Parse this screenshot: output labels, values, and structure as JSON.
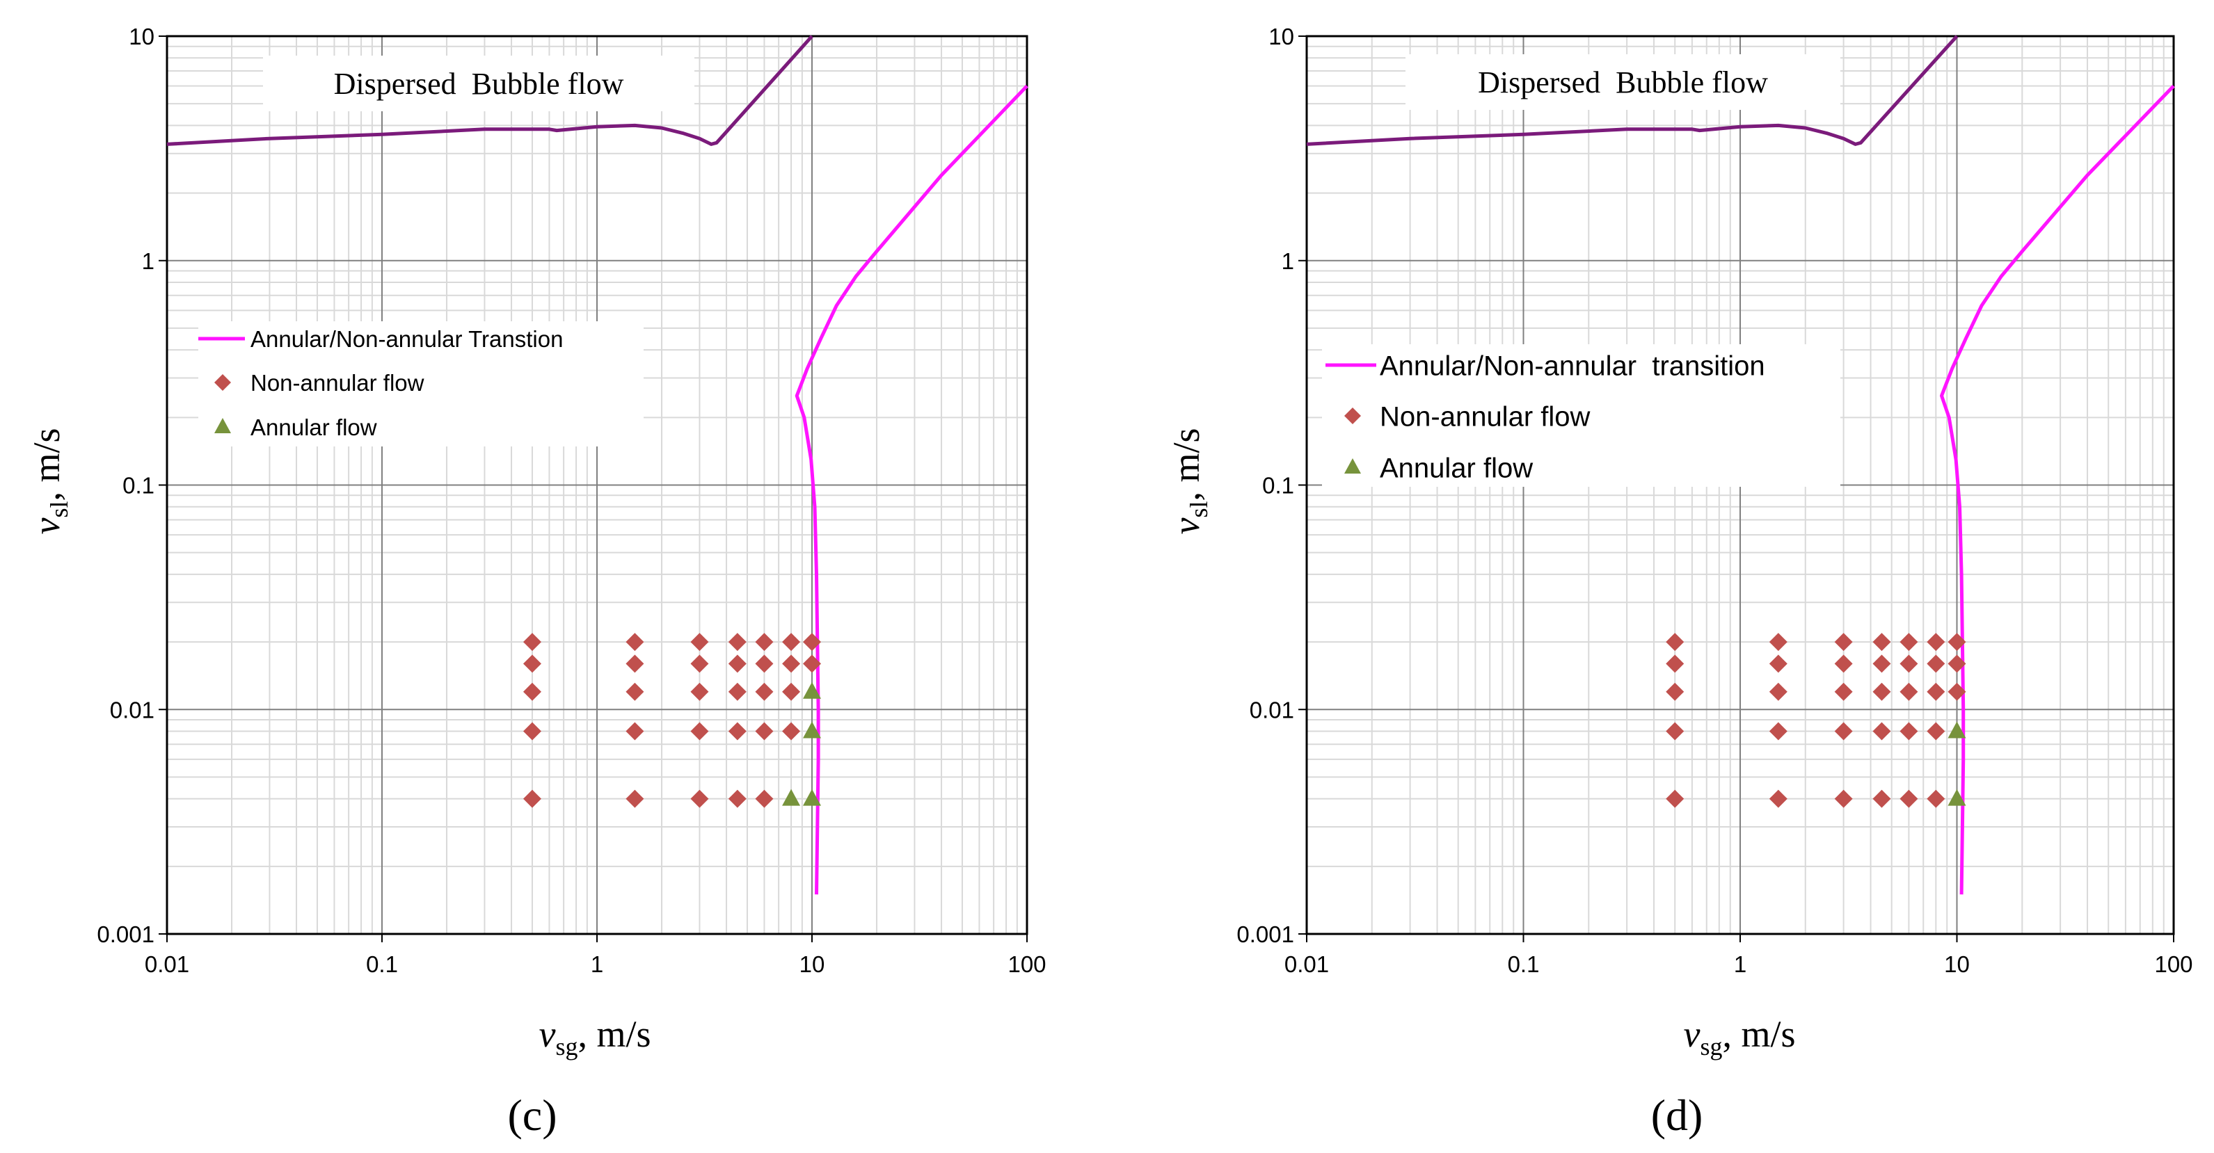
{
  "colors": {
    "transition_line": "#ff14ff",
    "bubble_line": "#7b1b7b",
    "nonannular_marker": "#c0504d",
    "annular_marker": "#77933c",
    "grid_minor": "#d9d9d9",
    "grid_major": "#808080"
  },
  "chart_data": [
    {
      "panel_label": "(c)",
      "type": "scatter",
      "scale": "log-log",
      "xlim": [
        0.01,
        100
      ],
      "ylim": [
        0.001,
        10
      ],
      "x_tick_labels": [
        "0.01",
        "0.1",
        "1",
        "10",
        "100"
      ],
      "y_tick_labels": [
        "0.001",
        "0.01",
        "0.1",
        "1",
        "10"
      ],
      "xlabel_var": "v",
      "xlabel_sub": "sg",
      "xlabel_unit": ", m/s",
      "ylabel_var": "v",
      "ylabel_sub": "sl",
      "ylabel_unit": ", m/s",
      "region_label": "Dispersed  Bubble flow",
      "legend": {
        "transition": "Annular/Non-annular Transtion",
        "nonannular": "Non-annular flow",
        "annular": "Annular flow"
      },
      "bubble_boundary": [
        [
          0.01,
          3.3
        ],
        [
          0.03,
          3.5
        ],
        [
          0.1,
          3.65
        ],
        [
          0.3,
          3.85
        ],
        [
          0.6,
          3.85
        ],
        [
          0.65,
          3.8
        ],
        [
          1.0,
          3.95
        ],
        [
          1.5,
          4.0
        ],
        [
          2.0,
          3.9
        ],
        [
          2.5,
          3.7
        ],
        [
          3.0,
          3.5
        ],
        [
          3.4,
          3.3
        ],
        [
          3.6,
          3.35
        ],
        [
          10.0,
          10.0
        ]
      ],
      "transition_curve": [
        [
          10.5,
          0.0015
        ],
        [
          10.6,
          0.003
        ],
        [
          10.7,
          0.006
        ],
        [
          10.7,
          0.01
        ],
        [
          10.6,
          0.02
        ],
        [
          10.5,
          0.04
        ],
        [
          10.3,
          0.08
        ],
        [
          9.9,
          0.13
        ],
        [
          9.2,
          0.2
        ],
        [
          8.5,
          0.25
        ],
        [
          9.5,
          0.33
        ],
        [
          11.0,
          0.45
        ],
        [
          13.0,
          0.63
        ],
        [
          16.0,
          0.85
        ],
        [
          20.0,
          1.1
        ],
        [
          40.0,
          2.4
        ],
        [
          100.0,
          6.0
        ]
      ],
      "nonannular_points": [
        [
          0.5,
          0.02
        ],
        [
          0.5,
          0.016
        ],
        [
          0.5,
          0.012
        ],
        [
          0.5,
          0.008
        ],
        [
          0.5,
          0.004
        ],
        [
          1.5,
          0.02
        ],
        [
          1.5,
          0.016
        ],
        [
          1.5,
          0.012
        ],
        [
          1.5,
          0.008
        ],
        [
          1.5,
          0.004
        ],
        [
          3,
          0.02
        ],
        [
          3,
          0.016
        ],
        [
          3,
          0.012
        ],
        [
          3,
          0.008
        ],
        [
          3,
          0.004
        ],
        [
          4.5,
          0.02
        ],
        [
          4.5,
          0.016
        ],
        [
          4.5,
          0.012
        ],
        [
          4.5,
          0.008
        ],
        [
          4.5,
          0.004
        ],
        [
          6,
          0.02
        ],
        [
          6,
          0.016
        ],
        [
          6,
          0.012
        ],
        [
          6,
          0.008
        ],
        [
          6,
          0.004
        ],
        [
          8,
          0.02
        ],
        [
          8,
          0.016
        ],
        [
          8,
          0.012
        ],
        [
          8,
          0.008
        ],
        [
          10,
          0.02
        ],
        [
          10,
          0.016
        ]
      ],
      "annular_points": [
        [
          10,
          0.012
        ],
        [
          10,
          0.008
        ],
        [
          8,
          0.004
        ],
        [
          10,
          0.004
        ]
      ]
    },
    {
      "panel_label": "(d)",
      "type": "scatter",
      "scale": "log-log",
      "xlim": [
        0.01,
        100
      ],
      "ylim": [
        0.001,
        10
      ],
      "x_tick_labels": [
        "0.01",
        "0.1",
        "1",
        "10",
        "100"
      ],
      "y_tick_labels": [
        "0.001",
        "0.01",
        "0.1",
        "1",
        "10"
      ],
      "xlabel_var": "v",
      "xlabel_sub": "sg",
      "xlabel_unit": ", m/s",
      "ylabel_var": "v",
      "ylabel_sub": "sl",
      "ylabel_unit": ", m/s",
      "region_label": "Dispersed  Bubble flow",
      "legend": {
        "transition": "Annular/Non-annular  transition",
        "nonannular": "Non-annular flow",
        "annular": "Annular flow"
      },
      "bubble_boundary": [
        [
          0.01,
          3.3
        ],
        [
          0.03,
          3.5
        ],
        [
          0.1,
          3.65
        ],
        [
          0.3,
          3.85
        ],
        [
          0.6,
          3.85
        ],
        [
          0.65,
          3.8
        ],
        [
          1.0,
          3.95
        ],
        [
          1.5,
          4.0
        ],
        [
          2.0,
          3.9
        ],
        [
          2.5,
          3.7
        ],
        [
          3.0,
          3.5
        ],
        [
          3.4,
          3.3
        ],
        [
          3.6,
          3.35
        ],
        [
          10.0,
          10.0
        ]
      ],
      "transition_curve": [
        [
          10.5,
          0.0015
        ],
        [
          10.6,
          0.003
        ],
        [
          10.7,
          0.006
        ],
        [
          10.7,
          0.01
        ],
        [
          10.6,
          0.02
        ],
        [
          10.5,
          0.04
        ],
        [
          10.3,
          0.08
        ],
        [
          9.9,
          0.13
        ],
        [
          9.2,
          0.2
        ],
        [
          8.5,
          0.25
        ],
        [
          9.5,
          0.33
        ],
        [
          11.0,
          0.45
        ],
        [
          13.0,
          0.63
        ],
        [
          16.0,
          0.85
        ],
        [
          20.0,
          1.1
        ],
        [
          40.0,
          2.4
        ],
        [
          100.0,
          6.0
        ]
      ],
      "nonannular_points": [
        [
          0.5,
          0.02
        ],
        [
          0.5,
          0.016
        ],
        [
          0.5,
          0.012
        ],
        [
          0.5,
          0.008
        ],
        [
          0.5,
          0.004
        ],
        [
          1.5,
          0.02
        ],
        [
          1.5,
          0.016
        ],
        [
          1.5,
          0.012
        ],
        [
          1.5,
          0.008
        ],
        [
          1.5,
          0.004
        ],
        [
          3,
          0.02
        ],
        [
          3,
          0.016
        ],
        [
          3,
          0.012
        ],
        [
          3,
          0.008
        ],
        [
          3,
          0.004
        ],
        [
          4.5,
          0.02
        ],
        [
          4.5,
          0.016
        ],
        [
          4.5,
          0.012
        ],
        [
          4.5,
          0.008
        ],
        [
          4.5,
          0.004
        ],
        [
          6,
          0.02
        ],
        [
          6,
          0.016
        ],
        [
          6,
          0.012
        ],
        [
          6,
          0.008
        ],
        [
          6,
          0.004
        ],
        [
          8,
          0.02
        ],
        [
          8,
          0.016
        ],
        [
          8,
          0.012
        ],
        [
          8,
          0.008
        ],
        [
          8,
          0.004
        ],
        [
          10,
          0.02
        ],
        [
          10,
          0.016
        ],
        [
          10,
          0.012
        ]
      ],
      "annular_points": [
        [
          10,
          0.008
        ],
        [
          10,
          0.004
        ]
      ]
    }
  ]
}
